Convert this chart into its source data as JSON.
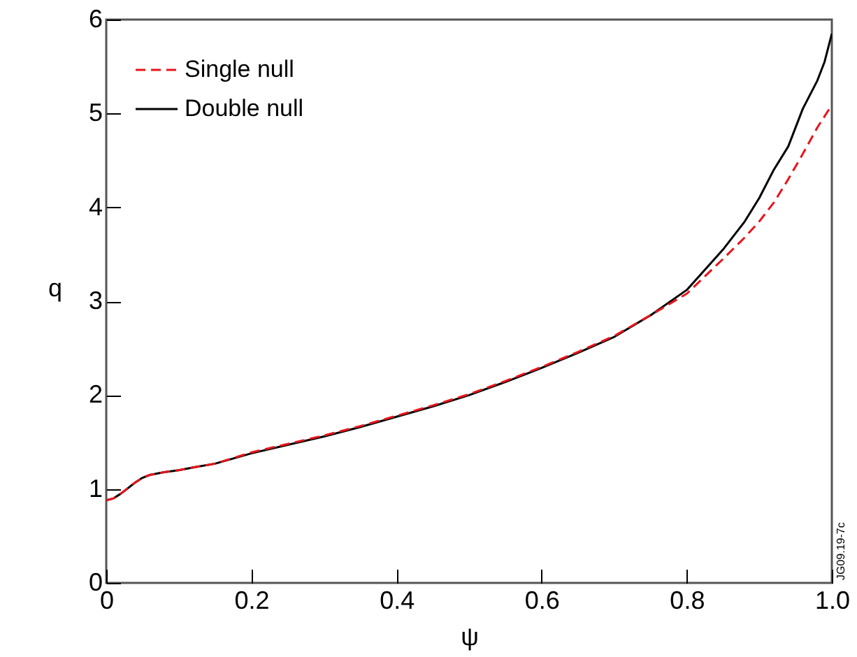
{
  "chart_data": {
    "type": "line",
    "xlabel": "ψ",
    "ylabel": "q",
    "x": [
      0,
      0.01,
      0.02,
      0.03,
      0.04,
      0.05,
      0.06,
      0.08,
      0.1,
      0.12,
      0.15,
      0.2,
      0.25,
      0.3,
      0.35,
      0.4,
      0.45,
      0.5,
      0.55,
      0.6,
      0.65,
      0.7,
      0.75,
      0.8,
      0.85,
      0.88,
      0.9,
      0.92,
      0.94,
      0.96,
      0.98,
      0.99,
      1.0
    ],
    "series": [
      {
        "name": "Single null",
        "color": "#e8141c",
        "line_style": "dashed",
        "values": [
          0.88,
          0.9,
          0.95,
          1.01,
          1.07,
          1.12,
          1.15,
          1.18,
          1.2,
          1.23,
          1.27,
          1.39,
          1.48,
          1.57,
          1.67,
          1.78,
          1.89,
          2.01,
          2.15,
          2.3,
          2.46,
          2.63,
          2.85,
          3.08,
          3.45,
          3.68,
          3.85,
          4.05,
          4.3,
          4.57,
          4.85,
          4.97,
          5.09
        ]
      },
      {
        "name": "Double null",
        "color": "#000000",
        "line_style": "solid",
        "values": [
          0.88,
          0.9,
          0.95,
          1.01,
          1.07,
          1.12,
          1.15,
          1.18,
          1.2,
          1.23,
          1.27,
          1.38,
          1.47,
          1.56,
          1.66,
          1.77,
          1.88,
          2.0,
          2.14,
          2.29,
          2.45,
          2.62,
          2.85,
          3.12,
          3.55,
          3.85,
          4.1,
          4.4,
          4.65,
          5.05,
          5.35,
          5.55,
          5.85
        ]
      }
    ],
    "xlim": [
      0,
      1
    ],
    "xticks": [
      0,
      0.2,
      0.4,
      0.6,
      0.8,
      {
        "value": 1,
        "label": "1.0"
      }
    ],
    "ylim": [
      0,
      6
    ],
    "yticks": [
      0,
      1,
      2,
      3,
      4,
      5,
      6
    ],
    "legend": "top left",
    "grid": false,
    "annotations": [
      "JG09.19-7c"
    ]
  }
}
